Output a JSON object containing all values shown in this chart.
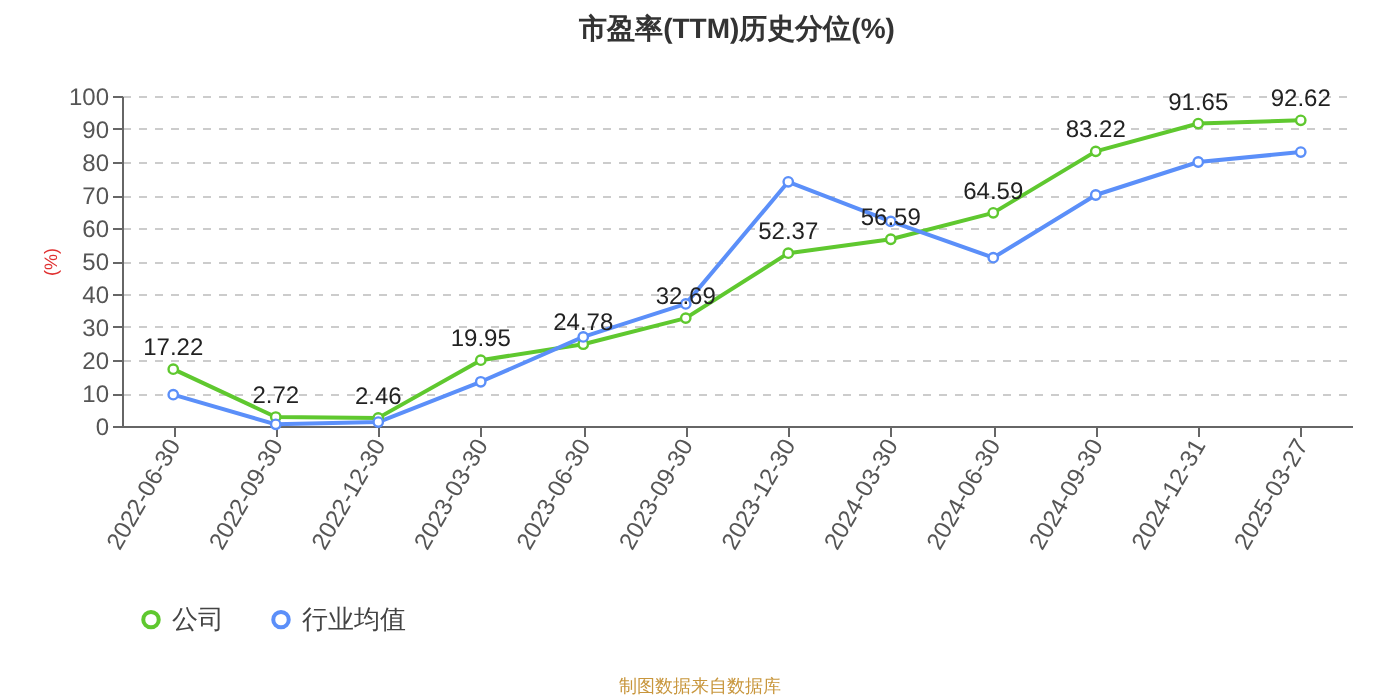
{
  "chart_data": {
    "type": "line",
    "title": "市盈率(TTM)历史分位(%)",
    "ylabel": "(%)",
    "categories": [
      "2022-06-30",
      "2022-09-30",
      "2022-12-30",
      "2023-03-30",
      "2023-06-30",
      "2023-09-30",
      "2023-12-30",
      "2024-03-30",
      "2024-06-30",
      "2024-09-30",
      "2024-12-31",
      "2025-03-27"
    ],
    "series": [
      {
        "name": "公司",
        "color": "#5fc82f",
        "values": [
          17.22,
          2.72,
          2.46,
          19.95,
          24.78,
          32.69,
          52.37,
          56.59,
          64.59,
          83.22,
          91.65,
          92.62
        ],
        "value_labels": [
          "17.22",
          "2.72",
          "2.46",
          "19.95",
          "24.78",
          "32.69",
          "52.37",
          "56.59",
          "64.59",
          "83.22",
          "91.65",
          "92.62"
        ]
      },
      {
        "name": "行业均值",
        "color": "#5b8ff9",
        "values": [
          9.5,
          0.5,
          1.2,
          13.4,
          27,
          37,
          74,
          62,
          51,
          70,
          80,
          83
        ]
      }
    ],
    "ylim": [
      0,
      100
    ],
    "yticks": [
      0,
      10,
      20,
      30,
      40,
      50,
      60,
      70,
      80,
      90,
      100
    ],
    "grid": "y",
    "legend": "bottom",
    "marker": "circle",
    "line_style": "solid",
    "annotations": [
      "制图数据来自数据库"
    ]
  }
}
